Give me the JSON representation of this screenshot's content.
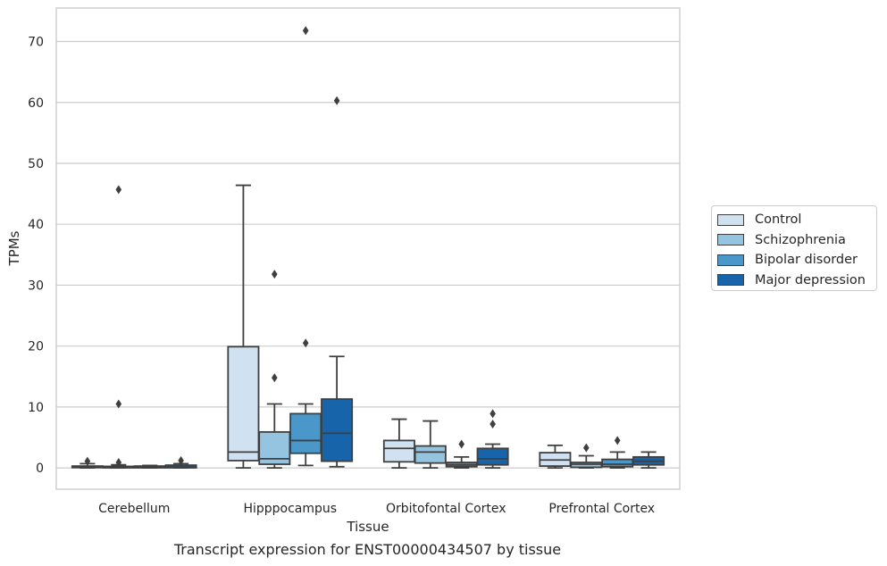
{
  "chart_data": {
    "type": "box",
    "title": "Transcript expression for ENST00000434507 by tissue",
    "xlabel": "Tissue",
    "ylabel": "TPMs",
    "ylim": [
      -3.5,
      75.5
    ],
    "yticks": [
      0,
      10,
      20,
      30,
      40,
      50,
      60,
      70
    ],
    "grid": true,
    "legend_position": "right",
    "categories": [
      "Cerebellum",
      "Hipppocampus",
      "Orbitofontal Cortex",
      "Prefrontal Cortex"
    ],
    "series": [
      {
        "name": "Control",
        "color": "#d0e1f2",
        "boxes": [
          {
            "min": 0,
            "q1": 0.05,
            "median": 0.15,
            "q3": 0.3,
            "max": 0.7,
            "outliers": [
              1.1
            ]
          },
          {
            "min": 0,
            "q1": 1.2,
            "median": 2.6,
            "q3": 19.9,
            "max": 46.4,
            "outliers": []
          },
          {
            "min": 0,
            "q1": 1.0,
            "median": 3.2,
            "q3": 4.5,
            "max": 8.0,
            "outliers": []
          },
          {
            "min": 0,
            "q1": 0.3,
            "median": 1.3,
            "q3": 2.5,
            "max": 3.7,
            "outliers": []
          }
        ]
      },
      {
        "name": "Schizophrenia",
        "color": "#94c4df",
        "boxes": [
          {
            "min": 0,
            "q1": 0.02,
            "median": 0.1,
            "q3": 0.25,
            "max": 0.5,
            "outliers": [
              0.9,
              45.7,
              10.5
            ]
          },
          {
            "min": 0,
            "q1": 0.6,
            "median": 1.5,
            "q3": 5.9,
            "max": 10.5,
            "outliers": [
              14.8,
              31.8
            ]
          },
          {
            "min": 0,
            "q1": 0.8,
            "median": 2.6,
            "q3": 3.6,
            "max": 7.7,
            "outliers": []
          },
          {
            "min": 0,
            "q1": 0.1,
            "median": 0.6,
            "q3": 0.9,
            "max": 2.0,
            "outliers": [
              3.3
            ]
          }
        ]
      },
      {
        "name": "Bipolar disorder",
        "color": "#4a98c9",
        "boxes": [
          {
            "min": 0,
            "q1": 0.02,
            "median": 0.1,
            "q3": 0.3,
            "max": 0.4,
            "outliers": []
          },
          {
            "min": 0.4,
            "q1": 2.4,
            "median": 4.5,
            "q3": 8.9,
            "max": 10.5,
            "outliers": [
              20.5,
              71.8
            ]
          },
          {
            "min": 0,
            "q1": 0.2,
            "median": 0.5,
            "q3": 0.9,
            "max": 1.8,
            "outliers": [
              3.9
            ]
          },
          {
            "min": 0,
            "q1": 0.2,
            "median": 0.6,
            "q3": 1.4,
            "max": 2.6,
            "outliers": [
              4.5
            ]
          }
        ]
      },
      {
        "name": "Major depression",
        "color": "#1764ab",
        "boxes": [
          {
            "min": 0,
            "q1": 0.02,
            "median": 0.15,
            "q3": 0.45,
            "max": 0.7,
            "outliers": [
              1.2
            ]
          },
          {
            "min": 0.2,
            "q1": 1.1,
            "median": 5.7,
            "q3": 11.3,
            "max": 18.3,
            "outliers": [
              60.3
            ]
          },
          {
            "min": 0,
            "q1": 0.5,
            "median": 1.5,
            "q3": 3.2,
            "max": 3.9,
            "outliers": [
              7.2,
              8.9
            ]
          },
          {
            "min": 0,
            "q1": 0.5,
            "median": 1.1,
            "q3": 1.8,
            "max": 2.6,
            "outliers": []
          }
        ]
      }
    ]
  }
}
